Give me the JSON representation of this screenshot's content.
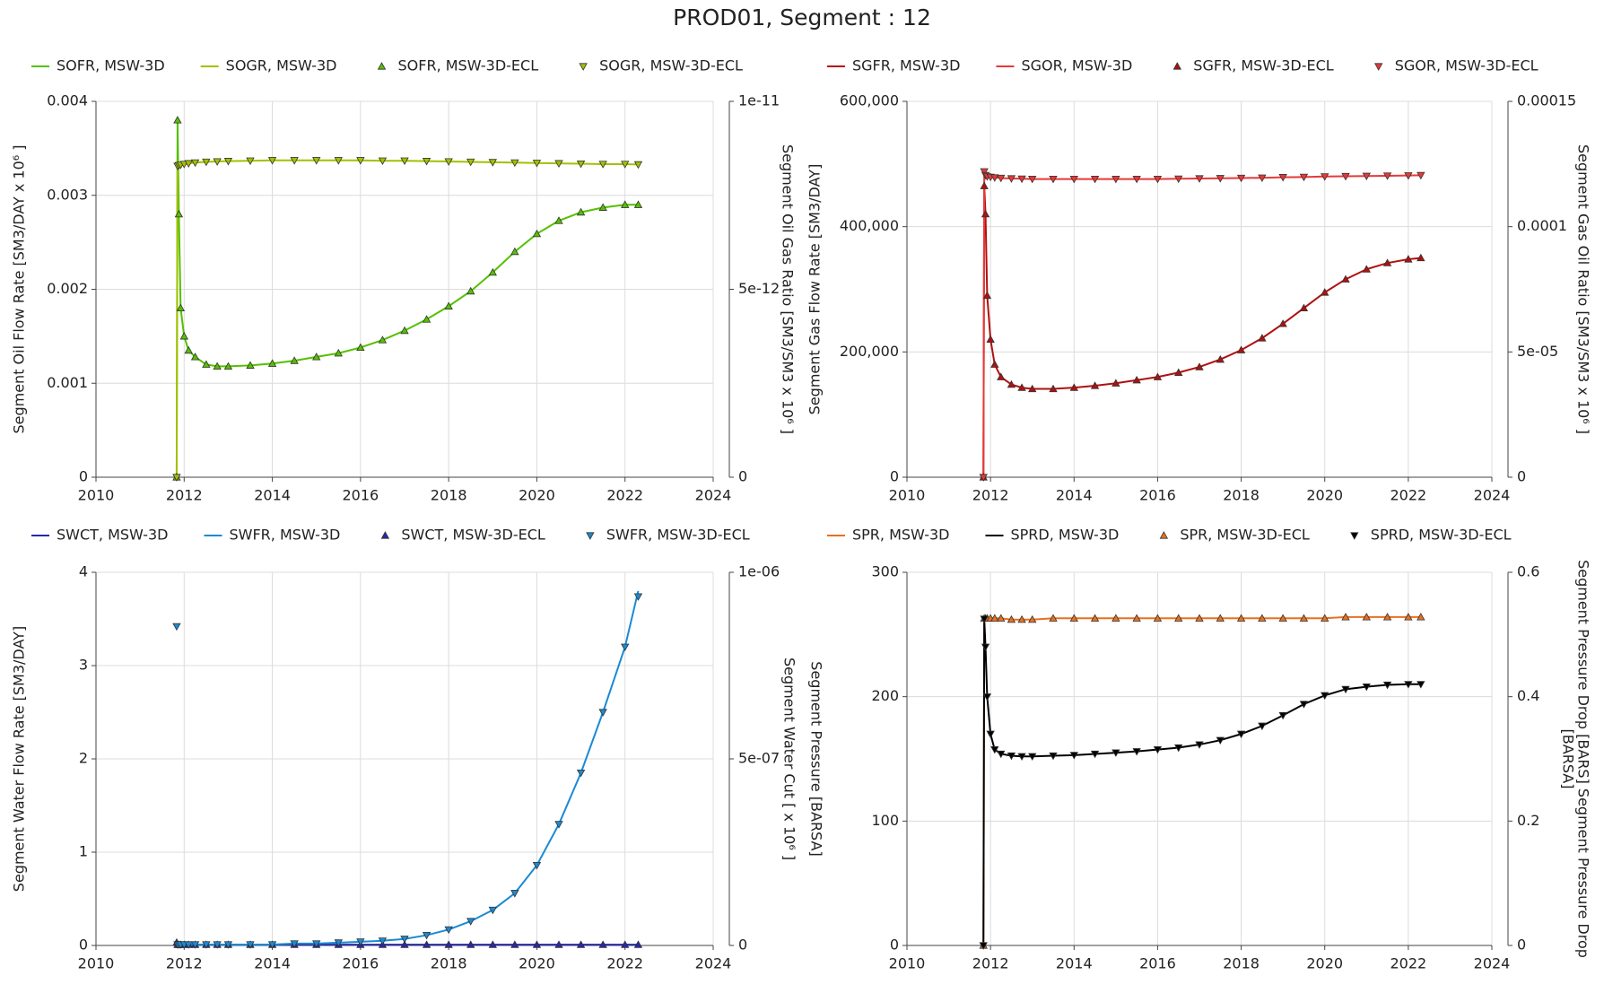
{
  "title": "PROD01, Segment : 12",
  "chart_data": [
    {
      "type": "line",
      "ylabel": "Segment Oil Flow Rate [SM3/DAY x 10⁶ ]",
      "y2labels": [
        "Segment Oil Gas Ratio [SM3/SM3 x 10⁶ ]"
      ],
      "x": [
        2011.83,
        2011.85,
        2011.88,
        2011.92,
        2012.0,
        2012.1,
        2012.25,
        2012.5,
        2012.75,
        2013.0,
        2013.5,
        2014.0,
        2014.5,
        2015.0,
        2015.5,
        2016.0,
        2016.5,
        2017.0,
        2017.5,
        2018.0,
        2018.5,
        2019.0,
        2019.5,
        2020.0,
        2020.5,
        2021.0,
        2021.5,
        2022.0,
        2022.3
      ],
      "xlim": [
        2010,
        2024
      ],
      "xticks": [
        2010,
        2012,
        2014,
        2016,
        2018,
        2020,
        2022,
        2024
      ],
      "ylim": [
        0,
        0.004
      ],
      "yticks": [
        0,
        0.001,
        0.002,
        0.003,
        0.004
      ],
      "y2lim": [
        0,
        1e-11
      ],
      "y2ticks": [
        0,
        5e-12,
        1e-11
      ],
      "grid": true,
      "series": [
        {
          "name": "SOFR, MSW-3D",
          "color": "#55c000",
          "style": "line",
          "values": [
            0,
            0.0038,
            0.0028,
            0.0018,
            0.0015,
            0.00135,
            0.00128,
            0.0012,
            0.00118,
            0.00118,
            0.00119,
            0.00121,
            0.00124,
            0.00128,
            0.00132,
            0.00138,
            0.00146,
            0.00156,
            0.00168,
            0.00182,
            0.00198,
            0.00218,
            0.0024,
            0.00259,
            0.00273,
            0.00282,
            0.00287,
            0.0029,
            0.0029
          ]
        },
        {
          "name": "SOGR, MSW-3D",
          "color": "#a4c000",
          "style": "line",
          "axis": "y2",
          "values": [
            0,
            8.28e-12,
            8.3e-12,
            8.31e-12,
            8.33e-12,
            8.35e-12,
            8.37e-12,
            8.39e-12,
            8.4e-12,
            8.41e-12,
            8.42e-12,
            8.43e-12,
            8.43e-12,
            8.43e-12,
            8.43e-12,
            8.43e-12,
            8.42e-12,
            8.42e-12,
            8.41e-12,
            8.4e-12,
            8.39e-12,
            8.38e-12,
            8.37e-12,
            8.36e-12,
            8.35e-12,
            8.34e-12,
            8.33e-12,
            8.33e-12,
            8.32e-12
          ]
        },
        {
          "name": "SOFR, MSW-3D-ECL",
          "color": "#55c000",
          "style": "triangle-up",
          "values": [
            0,
            0.0038,
            0.0028,
            0.0018,
            0.0015,
            0.00135,
            0.00128,
            0.0012,
            0.00118,
            0.00118,
            0.00119,
            0.00121,
            0.00124,
            0.00128,
            0.00132,
            0.00138,
            0.00146,
            0.00156,
            0.00168,
            0.00182,
            0.00198,
            0.00218,
            0.0024,
            0.00259,
            0.00273,
            0.00282,
            0.00287,
            0.0029,
            0.0029
          ]
        },
        {
          "name": "SOGR, MSW-3D-ECL",
          "color": "#a4c000",
          "style": "triangle-down",
          "axis": "y2",
          "values": [
            0,
            8.28e-12,
            8.3e-12,
            8.31e-12,
            8.33e-12,
            8.35e-12,
            8.37e-12,
            8.39e-12,
            8.4e-12,
            8.41e-12,
            8.42e-12,
            8.43e-12,
            8.43e-12,
            8.43e-12,
            8.43e-12,
            8.43e-12,
            8.42e-12,
            8.42e-12,
            8.41e-12,
            8.4e-12,
            8.39e-12,
            8.38e-12,
            8.37e-12,
            8.36e-12,
            8.35e-12,
            8.34e-12,
            8.33e-12,
            8.33e-12,
            8.32e-12
          ]
        }
      ]
    },
    {
      "type": "line",
      "ylabel": "Segment Gas Flow Rate [SM3/DAY]",
      "y2labels": [
        "Segment Gas Oil Ratio [SM3/SM3 x 10⁶ ]"
      ],
      "x": [
        2011.83,
        2011.85,
        2011.88,
        2011.92,
        2012.0,
        2012.1,
        2012.25,
        2012.5,
        2012.75,
        2013.0,
        2013.5,
        2014.0,
        2014.5,
        2015.0,
        2015.5,
        2016.0,
        2016.5,
        2017.0,
        2017.5,
        2018.0,
        2018.5,
        2019.0,
        2019.5,
        2020.0,
        2020.5,
        2021.0,
        2021.5,
        2022.0,
        2022.3
      ],
      "xlim": [
        2010,
        2024
      ],
      "xticks": [
        2010,
        2012,
        2014,
        2016,
        2018,
        2020,
        2022,
        2024
      ],
      "ylim": [
        0,
        600000
      ],
      "yticks": [
        0,
        {
          "value": 200000,
          "label": "200,000"
        },
        {
          "value": 400000,
          "label": "400,000"
        },
        {
          "value": 600000,
          "label": "600,000"
        }
      ],
      "y2lim": [
        0,
        0.00015
      ],
      "y2ticks": [
        0,
        {
          "value": 5e-05,
          "label": "5e-05"
        },
        0.0001,
        0.00015
      ],
      "grid": true,
      "series": [
        {
          "name": "SGFR, MSW-3D",
          "color": "#b01010",
          "style": "line",
          "values": [
            0,
            465000,
            420000,
            290000,
            220000,
            180000,
            160000,
            148000,
            143000,
            141000,
            141000,
            143000,
            146000,
            150000,
            155000,
            160000,
            167000,
            176000,
            188000,
            203000,
            222000,
            245000,
            270000,
            295000,
            316000,
            332000,
            342000,
            348000,
            350000
          ]
        },
        {
          "name": "SGOR, MSW-3D",
          "color": "#e83838",
          "style": "line",
          "axis": "y2",
          "values": [
            0,
            0.000122,
            0.0001205,
            0.00012,
            0.0001198,
            0.0001196,
            0.0001194,
            0.0001192,
            0.0001191,
            0.000119,
            0.000119,
            0.000119,
            0.000119,
            0.000119,
            0.000119,
            0.000119,
            0.0001191,
            0.0001192,
            0.0001193,
            0.0001194,
            0.0001195,
            0.0001197,
            0.0001198,
            0.00012,
            0.0001201,
            0.0001202,
            0.0001203,
            0.0001204,
            0.0001205
          ]
        },
        {
          "name": "SGFR, MSW-3D-ECL",
          "color": "#b01010",
          "style": "triangle-up",
          "values": [
            0,
            465000,
            420000,
            290000,
            220000,
            180000,
            160000,
            148000,
            143000,
            141000,
            141000,
            143000,
            146000,
            150000,
            155000,
            160000,
            167000,
            176000,
            188000,
            203000,
            222000,
            245000,
            270000,
            295000,
            316000,
            332000,
            342000,
            348000,
            350000
          ]
        },
        {
          "name": "SGOR, MSW-3D-ECL",
          "color": "#e83838",
          "style": "triangle-down",
          "axis": "y2",
          "values": [
            0,
            0.000122,
            0.0001205,
            0.00012,
            0.0001198,
            0.0001196,
            0.0001194,
            0.0001192,
            0.0001191,
            0.000119,
            0.000119,
            0.000119,
            0.000119,
            0.000119,
            0.000119,
            0.000119,
            0.0001191,
            0.0001192,
            0.0001193,
            0.0001194,
            0.0001195,
            0.0001197,
            0.0001198,
            0.00012,
            0.0001201,
            0.0001202,
            0.0001203,
            0.0001204,
            0.0001205
          ]
        }
      ]
    },
    {
      "type": "line",
      "ylabel": "Segment Water Flow Rate [SM3/DAY]",
      "y2labels": [
        "Segment Water Cut [ x 10⁶ ]",
        "Segment Pressure [BARSA]"
      ],
      "x": [
        2011.83,
        2011.85,
        2011.88,
        2011.92,
        2012.0,
        2012.1,
        2012.25,
        2012.5,
        2012.75,
        2013.0,
        2013.5,
        2014.0,
        2014.5,
        2015.0,
        2015.5,
        2016.0,
        2016.5,
        2017.0,
        2017.5,
        2018.0,
        2018.5,
        2019.0,
        2019.5,
        2020.0,
        2020.5,
        2021.0,
        2021.5,
        2022.0,
        2022.3
      ],
      "xlim": [
        2010,
        2024
      ],
      "xticks": [
        2010,
        2012,
        2014,
        2016,
        2018,
        2020,
        2022,
        2024
      ],
      "ylim": [
        0,
        4
      ],
      "yticks": [
        0,
        1,
        2,
        3,
        4
      ],
      "y2lim": [
        0,
        1e-06
      ],
      "y2ticks": [
        0,
        {
          "value": 5e-07,
          "label": "5e-07"
        },
        {
          "value": 1e-06,
          "label": "1e-06"
        }
      ],
      "grid": true,
      "series": [
        {
          "name": "SWCT, MSW-3D",
          "color": "#2828a8",
          "style": "line",
          "axis": "y2",
          "values": [
            8e-09,
            2e-09,
            2e-09,
            2e-09,
            2e-09,
            2e-09,
            2e-09,
            2e-09,
            2e-09,
            2e-09,
            2e-09,
            2e-09,
            2e-09,
            2e-09,
            2e-09,
            2e-09,
            2e-09,
            2e-09,
            2e-09,
            2e-09,
            2e-09,
            2e-09,
            2e-09,
            2e-09,
            2e-09,
            2e-09,
            2e-09,
            2e-09,
            2e-09
          ]
        },
        {
          "name": "SWFR, MSW-3D",
          "color": "#1a8ad4",
          "style": "line",
          "values": [
            0.02,
            0.01,
            0.01,
            0.01,
            0.01,
            0.01,
            0.01,
            0.01,
            0.01,
            0.01,
            0.01,
            0.01,
            0.02,
            0.02,
            0.03,
            0.04,
            0.05,
            0.07,
            0.11,
            0.17,
            0.26,
            0.38,
            0.56,
            0.86,
            1.3,
            1.85,
            2.5,
            3.2,
            3.8
          ]
        },
        {
          "name": "SWCT, MSW-3D-ECL",
          "color": "#2828a8",
          "style": "triangle-up",
          "axis": "y2",
          "values": [
            8e-09,
            2e-09,
            2e-09,
            2e-09,
            2e-09,
            2e-09,
            2e-09,
            2e-09,
            2e-09,
            2e-09,
            2e-09,
            2e-09,
            2e-09,
            2e-09,
            2e-09,
            2e-09,
            2e-09,
            2e-09,
            2e-09,
            2e-09,
            2e-09,
            2e-09,
            2e-09,
            2e-09,
            2e-09,
            2e-09,
            2e-09,
            2e-09,
            2e-09
          ]
        },
        {
          "name": "SWFR, MSW-3D-ECL",
          "color": "#1a8ad4",
          "style": "triangle-down",
          "values": [
            3.42,
            0.01,
            0.01,
            0.01,
            0.01,
            0.01,
            0.01,
            0.01,
            0.01,
            0.01,
            0.01,
            0.01,
            0.02,
            0.02,
            0.03,
            0.04,
            0.05,
            0.07,
            0.11,
            0.17,
            0.26,
            0.38,
            0.56,
            0.86,
            1.3,
            1.85,
            2.5,
            3.2,
            3.74
          ]
        }
      ]
    },
    {
      "type": "line",
      "y2labels": [
        "Segment Pressure Drop [BARS] Segment Pressure Drop",
        "[BARSA]"
      ],
      "x": [
        2011.83,
        2011.85,
        2011.88,
        2011.92,
        2012.0,
        2012.1,
        2012.25,
        2012.5,
        2012.75,
        2013.0,
        2013.5,
        2014.0,
        2014.5,
        2015.0,
        2015.5,
        2016.0,
        2016.5,
        2017.0,
        2017.5,
        2018.0,
        2018.5,
        2019.0,
        2019.5,
        2020.0,
        2020.5,
        2021.0,
        2021.5,
        2022.0,
        2022.3
      ],
      "xlim": [
        2010,
        2024
      ],
      "xticks": [
        2010,
        2012,
        2014,
        2016,
        2018,
        2020,
        2022,
        2024
      ],
      "ylim": [
        0,
        300
      ],
      "yticks": [
        0,
        100,
        200,
        300
      ],
      "y2lim": [
        0,
        0.6
      ],
      "y2ticks": [
        0,
        0.2,
        0.4,
        0.6
      ],
      "grid": true,
      "series": [
        {
          "name": "SPR, MSW-3D",
          "color": "#e87020",
          "style": "line",
          "values": [
            0,
            263,
            263,
            263,
            263,
            263,
            263,
            262,
            262,
            262,
            263,
            263,
            263,
            263,
            263,
            263,
            263,
            263,
            263,
            263,
            263,
            263,
            263,
            263,
            264,
            264,
            264,
            264,
            264
          ]
        },
        {
          "name": "SPRD, MSW-3D",
          "color": "#000000",
          "style": "line",
          "axis": "y2",
          "values": [
            0,
            0.525,
            0.48,
            0.4,
            0.34,
            0.315,
            0.308,
            0.305,
            0.304,
            0.304,
            0.305,
            0.306,
            0.308,
            0.31,
            0.312,
            0.315,
            0.318,
            0.323,
            0.33,
            0.34,
            0.353,
            0.37,
            0.388,
            0.402,
            0.412,
            0.416,
            0.419,
            0.42,
            0.42
          ]
        },
        {
          "name": "SPR, MSW-3D-ECL",
          "color": "#e87020",
          "style": "triangle-up",
          "values": [
            0,
            263,
            263,
            263,
            263,
            263,
            263,
            262,
            262,
            262,
            263,
            263,
            263,
            263,
            263,
            263,
            263,
            263,
            263,
            263,
            263,
            263,
            263,
            263,
            264,
            264,
            264,
            264,
            264
          ]
        },
        {
          "name": "SPRD, MSW-3D-ECL",
          "color": "#000000",
          "style": "triangle-down",
          "axis": "y2",
          "values": [
            0,
            0.525,
            0.48,
            0.4,
            0.34,
            0.315,
            0.308,
            0.305,
            0.304,
            0.304,
            0.305,
            0.306,
            0.308,
            0.31,
            0.312,
            0.315,
            0.318,
            0.323,
            0.33,
            0.34,
            0.353,
            0.37,
            0.388,
            0.402,
            0.412,
            0.416,
            0.419,
            0.42,
            0.42
          ]
        }
      ]
    }
  ]
}
